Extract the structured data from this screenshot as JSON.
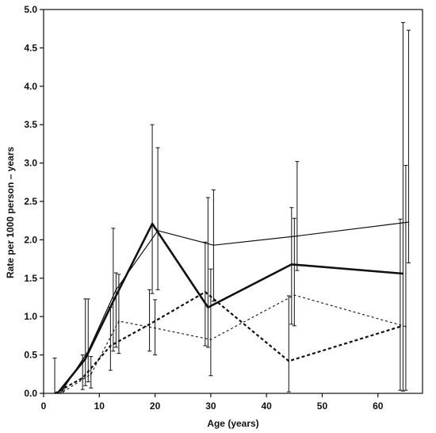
{
  "chart_data": {
    "type": "line",
    "xlabel": "Age (years)",
    "ylabel": "Rate per 1000 person – years",
    "xlim": [
      0,
      68
    ],
    "ylim": [
      0,
      5.0
    ],
    "xticks": [
      0,
      10,
      20,
      30,
      40,
      50,
      60
    ],
    "xtick_labels": [
      "0",
      "10",
      "20",
      "30",
      "40",
      "50",
      "60"
    ],
    "yticks": [
      0,
      0.5,
      1.0,
      1.5,
      2.0,
      2.5,
      3.0,
      3.5,
      4.0,
      4.5,
      5.0
    ],
    "ytick_labels": [
      "0.0",
      "0.5",
      "1.0",
      "1.5",
      "2.0",
      "2.5",
      "3.0",
      "3.5",
      "4.0",
      "4.5",
      "5.0"
    ],
    "grid": false,
    "series": [
      {
        "style": "thick-solid",
        "points": [
          {
            "x": 2.5,
            "y": 0.0,
            "lo": 0.0,
            "hi": 0.0
          },
          {
            "x": 7.5,
            "y": 0.45,
            "lo": 0.1,
            "hi": 1.23
          },
          {
            "x": 12.5,
            "y": 1.2,
            "lo": 0.55,
            "hi": 2.15
          },
          {
            "x": 19.5,
            "y": 2.21,
            "lo": 1.3,
            "hi": 3.5
          },
          {
            "x": 29.5,
            "y": 1.12,
            "lo": 0.6,
            "hi": 2.55
          },
          {
            "x": 44.5,
            "y": 1.68,
            "lo": 0.9,
            "hi": 2.42
          },
          {
            "x": 64.5,
            "y": 1.56,
            "lo": 0.03,
            "hi": 4.83
          }
        ]
      },
      {
        "style": "thin-solid",
        "points": [
          {
            "x": 3.0,
            "y": 0.0,
            "lo": 0.0,
            "hi": 0.0
          },
          {
            "x": 8.0,
            "y": 0.55,
            "lo": 0.15,
            "hi": 1.23
          },
          {
            "x": 13.0,
            "y": 1.35,
            "lo": 0.6,
            "hi": 1.57
          },
          {
            "x": 20.5,
            "y": 2.12,
            "lo": 1.35,
            "hi": 3.2
          },
          {
            "x": 30.5,
            "y": 1.93,
            "lo": 1.2,
            "hi": 2.65
          },
          {
            "x": 45.5,
            "y": 2.05,
            "lo": 1.6,
            "hi": 3.02
          },
          {
            "x": 65.5,
            "y": 2.23,
            "lo": 1.7,
            "hi": 4.73
          }
        ]
      },
      {
        "style": "thick-dashed",
        "points": [
          {
            "x": 2.0,
            "y": 0.0,
            "lo": 0.0,
            "hi": 0.46
          },
          {
            "x": 7.0,
            "y": 0.2,
            "lo": 0.05,
            "hi": 0.5
          },
          {
            "x": 12.0,
            "y": 0.62,
            "lo": 0.3,
            "hi": 1.12
          },
          {
            "x": 19.0,
            "y": 0.9,
            "lo": 0.55,
            "hi": 1.35
          },
          {
            "x": 29.0,
            "y": 1.32,
            "lo": 0.62,
            "hi": 1.97
          },
          {
            "x": 44.0,
            "y": 0.42,
            "lo": 0.02,
            "hi": 1.27
          },
          {
            "x": 64.0,
            "y": 0.87,
            "lo": 0.04,
            "hi": 2.27
          }
        ]
      },
      {
        "style": "thin-dashed",
        "points": [
          {
            "x": 3.5,
            "y": 0.02,
            "lo": 0.0,
            "hi": 0.05
          },
          {
            "x": 8.5,
            "y": 0.25,
            "lo": 0.07,
            "hi": 0.48
          },
          {
            "x": 13.5,
            "y": 0.94,
            "lo": 0.52,
            "hi": 1.55
          },
          {
            "x": 20.0,
            "y": 0.85,
            "lo": 0.5,
            "hi": 1.22
          },
          {
            "x": 30.0,
            "y": 0.7,
            "lo": 0.23,
            "hi": 1.62
          },
          {
            "x": 45.0,
            "y": 1.28,
            "lo": 0.88,
            "hi": 2.28
          },
          {
            "x": 65.0,
            "y": 0.87,
            "lo": 0.04,
            "hi": 2.97
          }
        ]
      }
    ]
  }
}
